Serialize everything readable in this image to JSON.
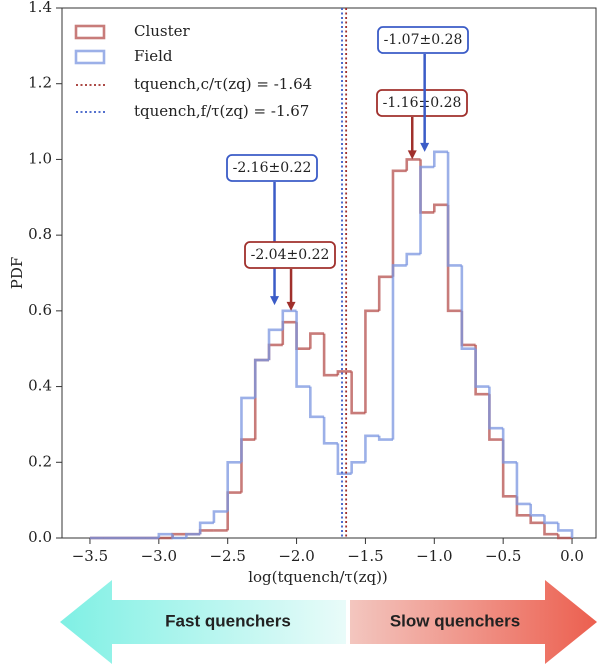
{
  "chart_data": {
    "type": "step-histogram",
    "xlabel": "log(tquench/τ(zq))",
    "ylabel": "PDF",
    "xlim": [
      -3.703,
      0.174
    ],
    "ylim": [
      0,
      1.4
    ],
    "xticks": [
      {
        "value": -3.5,
        "label": "−3.5"
      },
      {
        "value": -3.0,
        "label": "−3.0"
      },
      {
        "value": -2.5,
        "label": "−2.5"
      },
      {
        "value": -2.0,
        "label": "−2.0"
      },
      {
        "value": -1.5,
        "label": "−1.5"
      },
      {
        "value": -1.0,
        "label": "−1.0"
      },
      {
        "value": -0.5,
        "label": "−0.5"
      },
      {
        "value": 0,
        "label": "0.0"
      }
    ],
    "yticks": [
      {
        "value": 0,
        "label": "0.0"
      },
      0.2,
      0.4,
      0.6,
      0.8,
      {
        "value": 1,
        "label": "1.0"
      },
      1.2,
      1.4
    ],
    "bins": [
      -3.5,
      -3.4,
      -3.3,
      -3.2,
      -3.1,
      -3.0,
      -2.9,
      -2.8,
      -2.7,
      -2.6,
      -2.5,
      -2.4,
      -2.3,
      -2.2,
      -2.1,
      -2.0,
      -1.9,
      -1.8,
      -1.7,
      -1.6,
      -1.5,
      -1.4,
      -1.3,
      -1.2,
      -1.1,
      -1.0,
      -0.9,
      -0.8,
      -0.7,
      -0.6,
      -0.5,
      -0.4,
      -0.3,
      -0.2,
      -0.1,
      0.0
    ],
    "series": [
      {
        "name": "Cluster",
        "color": "#b5504d",
        "values": [
          0,
          0,
          0,
          0,
          0,
          0,
          0.01,
          0.01,
          0.02,
          0.02,
          0.12,
          0.26,
          0.47,
          0.51,
          0.57,
          0.5,
          0.54,
          0.43,
          0.44,
          0.33,
          0.6,
          0.69,
          0.97,
          1.0,
          0.86,
          0.88,
          0.6,
          0.51,
          0.38,
          0.26,
          0.11,
          0.06,
          0.04,
          0.01,
          0
        ]
      },
      {
        "name": "Field",
        "color": "#7b96e0",
        "values": [
          0,
          0,
          0,
          0,
          0,
          0.01,
          0,
          0.01,
          0.04,
          0.07,
          0.2,
          0.37,
          0.47,
          0.55,
          0.6,
          0.4,
          0.32,
          0.25,
          0.17,
          0.2,
          0.27,
          0.26,
          0.72,
          0.75,
          0.98,
          1.02,
          0.72,
          0.5,
          0.4,
          0.29,
          0.2,
          0.09,
          0.06,
          0.04,
          0.02
        ]
      }
    ],
    "vlines": [
      {
        "x": -1.64,
        "color": "#a0302c",
        "label": "tquench,c/τ(zq) = -1.64"
      },
      {
        "x": -1.67,
        "color": "#3b5cc7",
        "label": "tquench,f/τ(zq) = -1.67"
      }
    ],
    "annotations": [
      {
        "x": -2.16,
        "label": "-2.16±0.22",
        "color": "#3b5cc7"
      },
      {
        "x": -2.04,
        "label": "-2.04±0.22",
        "color": "#a0302c"
      },
      {
        "x": -1.16,
        "label": "-1.16±0.28",
        "color": "#a0302c"
      },
      {
        "x": -1.07,
        "label": "-1.07±0.28",
        "color": "#3b5cc7"
      }
    ],
    "arrow_labels": [
      "Fast quenchers",
      "Slow quenchers"
    ]
  }
}
